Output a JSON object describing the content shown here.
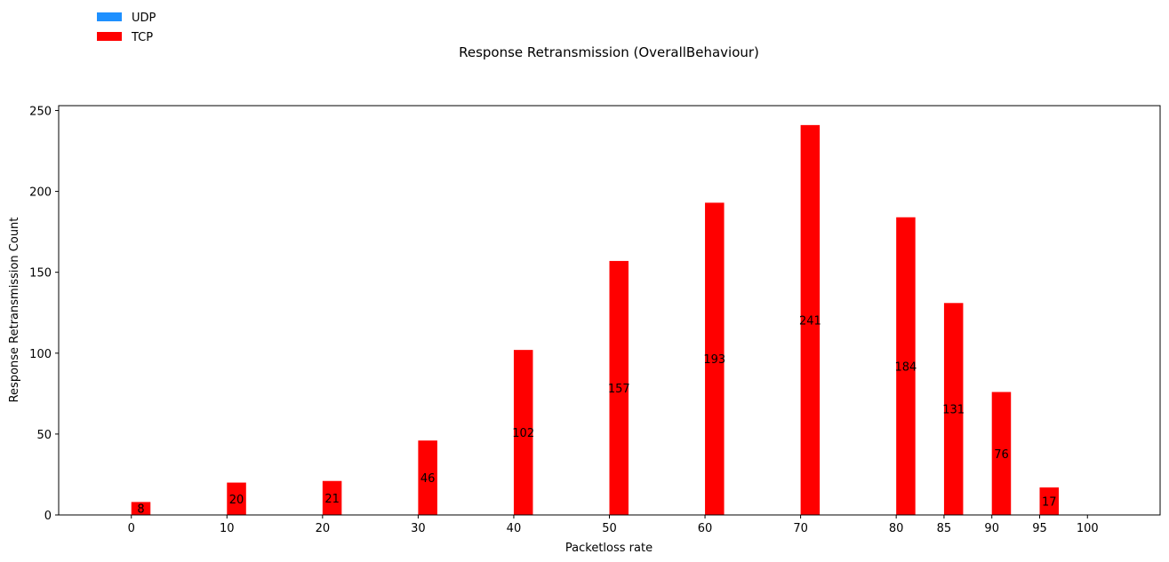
{
  "chart_data": {
    "type": "bar",
    "title": "Response Retransmission (OverallBehaviour)",
    "xlabel": "Packetloss rate",
    "ylabel": "Response Retransmission Count",
    "xlim": [
      -7.6,
      107.6
    ],
    "ylim": [
      0,
      253
    ],
    "x_ticks": [
      0,
      10,
      20,
      30,
      40,
      50,
      60,
      70,
      80,
      85,
      90,
      95,
      100
    ],
    "y_ticks": [
      0,
      50,
      100,
      150,
      200,
      250
    ],
    "grid": false,
    "legend_position": "top-left",
    "series": [
      {
        "name": "UDP",
        "color": "#1e90ff",
        "x": [
          0,
          10,
          20,
          30,
          40,
          50,
          60,
          70,
          80,
          85,
          90,
          95,
          100
        ],
        "values": [
          0,
          0,
          0,
          0,
          0,
          0,
          0,
          0,
          0,
          0,
          0,
          0,
          0
        ],
        "labels_shown": false
      },
      {
        "name": "TCP",
        "color": "#ff0000",
        "x": [
          1,
          11,
          21,
          31,
          41,
          51,
          61,
          71,
          81,
          86,
          91,
          96
        ],
        "values": [
          8,
          20,
          21,
          46,
          102,
          157,
          193,
          241,
          184,
          131,
          76,
          17
        ],
        "labels_shown": true
      }
    ]
  }
}
